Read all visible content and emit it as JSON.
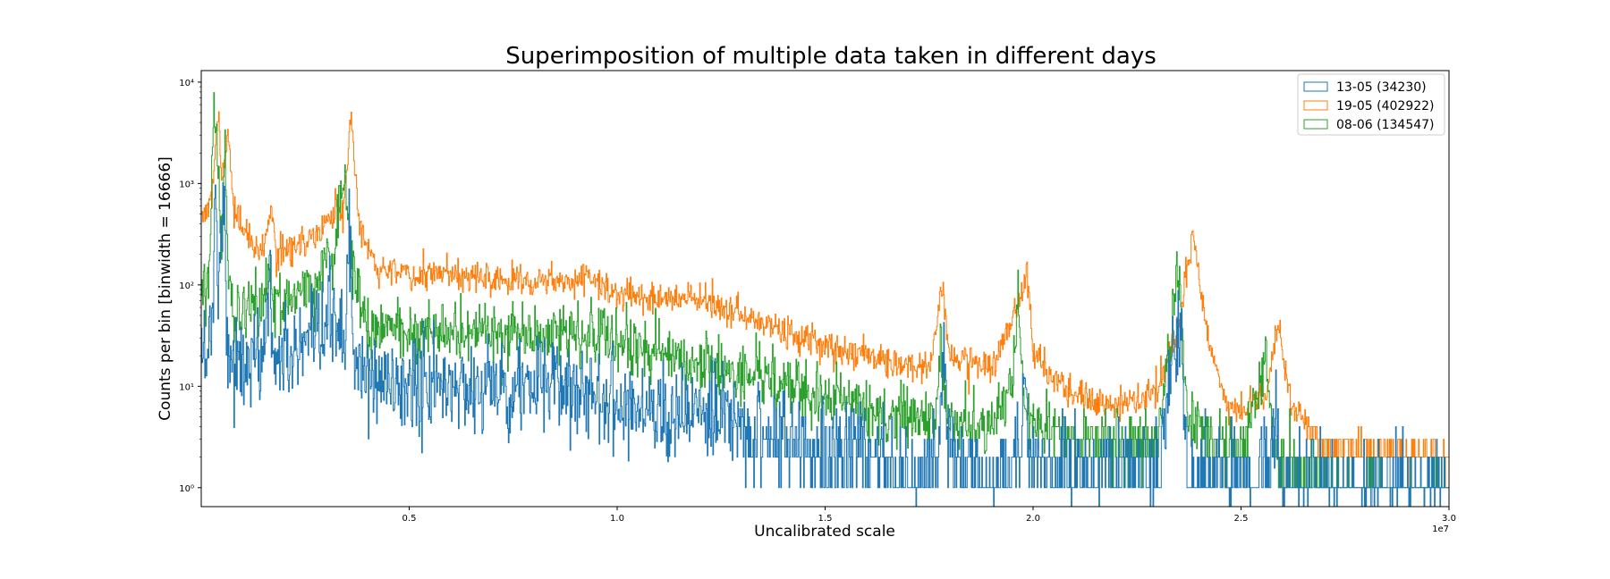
{
  "chart_data": {
    "type": "histogram-step",
    "title": "Superimposition of multiple data taken in different days",
    "xlabel": "Uncalibrated scale",
    "ylabel": "Counts per bin [binwidth = 16666]",
    "x_offset_label": "1e7",
    "x_scale_multiplier": 10000000,
    "xlim": [
      0,
      30000000
    ],
    "ylim": [
      0.65,
      13000
    ],
    "y_scale": "log",
    "x_ticks": [
      {
        "value": 5000000,
        "label": "0.5"
      },
      {
        "value": 10000000,
        "label": "1.0"
      },
      {
        "value": 15000000,
        "label": "1.5"
      },
      {
        "value": 20000000,
        "label": "2.0"
      },
      {
        "value": 25000000,
        "label": "2.5"
      },
      {
        "value": 30000000,
        "label": "3.0"
      }
    ],
    "y_ticks": [
      {
        "value": 1,
        "label": "10⁰"
      },
      {
        "value": 10,
        "label": "10¹"
      },
      {
        "value": 100,
        "label": "10²"
      },
      {
        "value": 1000,
        "label": "10³"
      },
      {
        "value": 10000,
        "label": "10⁴"
      }
    ],
    "grid": false,
    "legend_position": "top-right",
    "series": [
      {
        "name": "13-05 (34230)",
        "color": "#1f77b4",
        "noise": 0.55,
        "profile": [
          [
            100000,
            22
          ],
          [
            200000,
            30
          ],
          [
            300000,
            80
          ],
          [
            350000,
            1800
          ],
          [
            420000,
            60
          ],
          [
            550000,
            1700
          ],
          [
            600000,
            30
          ],
          [
            800000,
            15
          ],
          [
            1500000,
            20
          ],
          [
            1650000,
            160
          ],
          [
            1700000,
            20
          ],
          [
            2200000,
            20
          ],
          [
            2800000,
            25
          ],
          [
            3100000,
            45
          ],
          [
            3300000,
            50
          ],
          [
            3450000,
            20
          ],
          [
            3550000,
            400
          ],
          [
            3650000,
            25
          ],
          [
            3800000,
            12
          ],
          [
            5000000,
            10
          ],
          [
            7000000,
            10
          ],
          [
            9000000,
            10
          ],
          [
            10000000,
            7
          ],
          [
            12000000,
            5
          ],
          [
            14000000,
            3
          ],
          [
            16000000,
            2
          ],
          [
            17700000,
            1.5
          ],
          [
            17850000,
            25
          ],
          [
            17950000,
            2
          ],
          [
            19000000,
            1.2
          ],
          [
            19700000,
            1.5
          ],
          [
            19800000,
            20
          ],
          [
            19900000,
            1.5
          ],
          [
            23000000,
            1.5
          ],
          [
            23550000,
            40
          ],
          [
            23700000,
            1.2
          ],
          [
            25700000,
            1.5
          ],
          [
            25850000,
            6
          ],
          [
            26000000,
            1
          ],
          [
            30000000,
            1
          ]
        ]
      },
      {
        "name": "19-05 (402922)",
        "color": "#ff7f0e",
        "noise": 0.18,
        "profile": [
          [
            100000,
            500
          ],
          [
            250000,
            700
          ],
          [
            350000,
            3000
          ],
          [
            420000,
            4500
          ],
          [
            500000,
            1000
          ],
          [
            650000,
            3000
          ],
          [
            800000,
            500
          ],
          [
            1200000,
            250
          ],
          [
            1500000,
            200
          ],
          [
            1700000,
            550
          ],
          [
            1800000,
            210
          ],
          [
            2200000,
            230
          ],
          [
            2800000,
            320
          ],
          [
            3100000,
            400
          ],
          [
            3250000,
            700
          ],
          [
            3400000,
            450
          ],
          [
            3600000,
            5000
          ],
          [
            3800000,
            400
          ],
          [
            4200000,
            150
          ],
          [
            5000000,
            130
          ],
          [
            7000000,
            115
          ],
          [
            9000000,
            115
          ],
          [
            9300000,
            130
          ],
          [
            9600000,
            95
          ],
          [
            10000000,
            80
          ],
          [
            12000000,
            70
          ],
          [
            13000000,
            50
          ],
          [
            14000000,
            35
          ],
          [
            15000000,
            25
          ],
          [
            16500000,
            18
          ],
          [
            17500000,
            15
          ],
          [
            17800000,
            90
          ],
          [
            18000000,
            20
          ],
          [
            19000000,
            15
          ],
          [
            19800000,
            100
          ],
          [
            19850000,
            150
          ],
          [
            20000000,
            20
          ],
          [
            21000000,
            8
          ],
          [
            22000000,
            6
          ],
          [
            23000000,
            9
          ],
          [
            23500000,
            40
          ],
          [
            23850000,
            330
          ],
          [
            24200000,
            30
          ],
          [
            24700000,
            6
          ],
          [
            25000000,
            6
          ],
          [
            25600000,
            8
          ],
          [
            25900000,
            45
          ],
          [
            26200000,
            6
          ],
          [
            27000000,
            2.5
          ],
          [
            30000000,
            2
          ]
        ]
      },
      {
        "name": "08-06 (134547)",
        "color": "#2ca02c",
        "noise": 0.35,
        "profile": [
          [
            100000,
            100
          ],
          [
            200000,
            200
          ],
          [
            320000,
            8000
          ],
          [
            400000,
            1500
          ],
          [
            500000,
            300
          ],
          [
            580000,
            1700
          ],
          [
            650000,
            150
          ],
          [
            800000,
            55
          ],
          [
            1500000,
            60
          ],
          [
            1650000,
            200
          ],
          [
            1700000,
            60
          ],
          [
            2200000,
            75
          ],
          [
            2800000,
            90
          ],
          [
            3000000,
            220
          ],
          [
            3200000,
            150
          ],
          [
            3450000,
            2000
          ],
          [
            3550000,
            300
          ],
          [
            3700000,
            120
          ],
          [
            4000000,
            40
          ],
          [
            5000000,
            35
          ],
          [
            7000000,
            33
          ],
          [
            9000000,
            35
          ],
          [
            10000000,
            25
          ],
          [
            12000000,
            17
          ],
          [
            13000000,
            13
          ],
          [
            15000000,
            8
          ],
          [
            16500000,
            5
          ],
          [
            17700000,
            5
          ],
          [
            17780000,
            40
          ],
          [
            17900000,
            5
          ],
          [
            19000000,
            4
          ],
          [
            19500000,
            12
          ],
          [
            19650000,
            80
          ],
          [
            19800000,
            5
          ],
          [
            21000000,
            3
          ],
          [
            23000000,
            3
          ],
          [
            23500000,
            150
          ],
          [
            23700000,
            5
          ],
          [
            25000000,
            2
          ],
          [
            25600000,
            20
          ],
          [
            25800000,
            2
          ],
          [
            27000000,
            1.1
          ],
          [
            30000000,
            1
          ]
        ]
      }
    ]
  }
}
